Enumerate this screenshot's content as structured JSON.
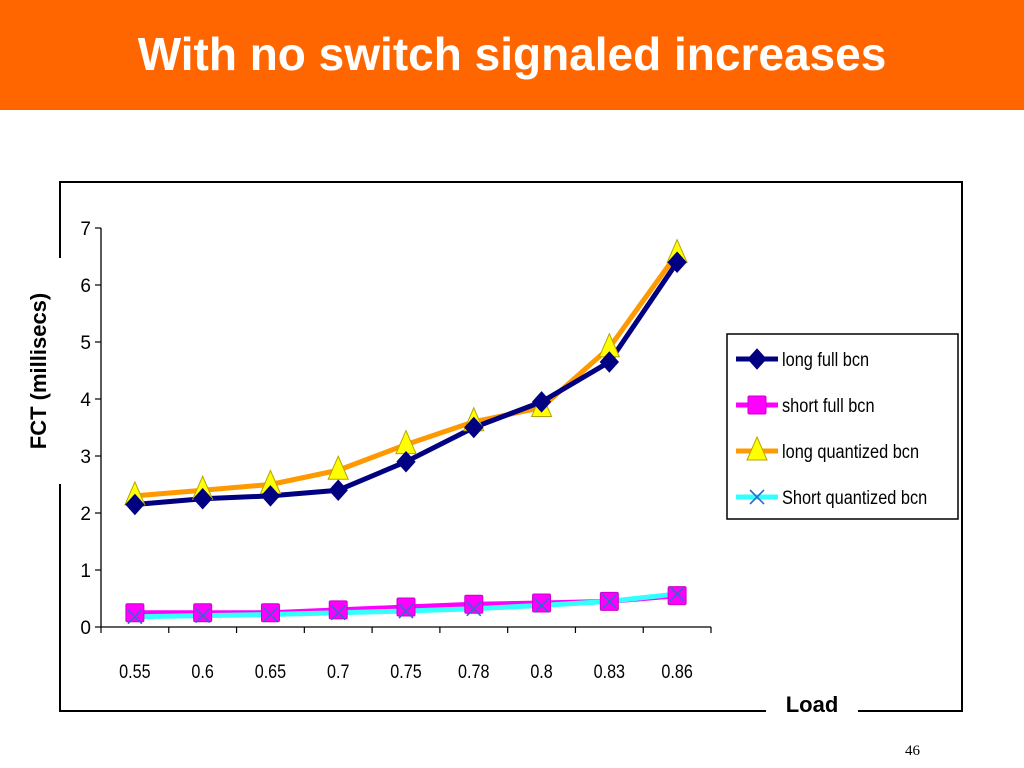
{
  "slide": {
    "title": "With no switch signaled increases",
    "page_number": "46"
  },
  "colors": {
    "title_bar": "#ff6600",
    "title_text": "#ffffff"
  },
  "chart_data": {
    "type": "line",
    "title": "",
    "xlabel": "Load",
    "ylabel": "FCT (millisecs)",
    "categories": [
      "0.55",
      "0.6",
      "0.65",
      "0.7",
      "0.75",
      "0.78",
      "0.8",
      "0.83",
      "0.86"
    ],
    "ylim": [
      0,
      7
    ],
    "yticks": [
      0,
      1,
      2,
      3,
      4,
      5,
      6,
      7
    ],
    "grid": false,
    "legend_position": "right",
    "series": [
      {
        "name": "long full bcn",
        "color": "#000080",
        "marker": "diamond",
        "values": [
          2.15,
          2.25,
          2.3,
          2.4,
          2.9,
          3.5,
          3.95,
          4.65,
          6.4
        ]
      },
      {
        "name": "short full  bcn",
        "color": "#ff00ff",
        "marker": "square",
        "values": [
          0.25,
          0.25,
          0.25,
          0.3,
          0.35,
          0.4,
          0.42,
          0.45,
          0.55
        ]
      },
      {
        "name": "long quantized bcn",
        "color": "#ff9900",
        "marker": "triangle",
        "values": [
          2.3,
          2.4,
          2.5,
          2.75,
          3.2,
          3.6,
          3.85,
          4.9,
          6.55
        ]
      },
      {
        "name": "Short quantized bcn",
        "color": "#33ffff",
        "marker": "x",
        "values": [
          0.18,
          0.2,
          0.22,
          0.25,
          0.28,
          0.32,
          0.38,
          0.45,
          0.58
        ]
      }
    ]
  }
}
